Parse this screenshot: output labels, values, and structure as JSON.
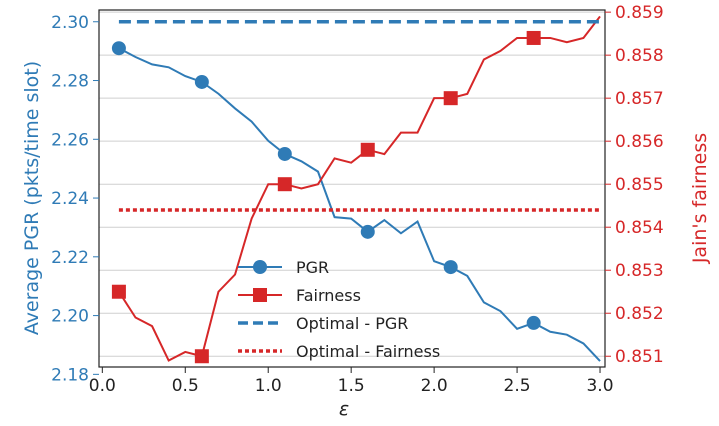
{
  "chart_data": {
    "type": "line",
    "xlabel": "ε",
    "ylabel_left": "Average PGR (pkts/time slot)",
    "ylabel_right": "Jain's fairness",
    "xlim": [
      -0.02,
      3.03
    ],
    "ylim_left": [
      2.1825,
      2.304
    ],
    "ylim_right": [
      0.85075,
      0.85905
    ],
    "x_ticks": [
      "0.0",
      "0.5",
      "1.0",
      "1.5",
      "2.0",
      "2.5",
      "3.0"
    ],
    "y_left_ticks": [
      "2.18",
      "2.20",
      "2.22",
      "2.24",
      "2.26",
      "2.28",
      "2.30"
    ],
    "y_right_ticks": [
      "0.851",
      "0.852",
      "0.853",
      "0.854",
      "0.855",
      "0.856",
      "0.857",
      "0.858",
      "0.859"
    ],
    "grid": "horizontal",
    "legend_position": "center-left",
    "colors": {
      "pgr": "#2f7bb6",
      "fairness": "#d62728",
      "left_axis": "#2f7bb6",
      "right_axis": "#d62728"
    },
    "series": [
      {
        "name": "PGR",
        "axis": "left",
        "style": "line-circle-markers",
        "x": [
          0.1,
          0.2,
          0.3,
          0.4,
          0.5,
          0.6,
          0.7,
          0.8,
          0.9,
          1.0,
          1.1,
          1.2,
          1.3,
          1.4,
          1.5,
          1.6,
          1.7,
          1.8,
          1.9,
          2.0,
          2.1,
          2.2,
          2.3,
          2.4,
          2.5,
          2.6,
          2.7,
          2.8,
          2.9,
          3.0
        ],
        "y": [
          2.291,
          2.288,
          2.2855,
          2.2845,
          2.2815,
          2.2795,
          2.2755,
          2.2705,
          2.266,
          2.2595,
          2.255,
          2.2525,
          2.249,
          2.2335,
          2.233,
          2.2285,
          2.2325,
          2.228,
          2.232,
          2.2185,
          2.2165,
          2.2135,
          2.2045,
          2.2015,
          2.1955,
          2.1975,
          2.1945,
          2.1935,
          2.1905,
          2.1845
        ],
        "marker_x": [
          0.1,
          0.6,
          1.1,
          1.6,
          2.1,
          2.6
        ],
        "marker_y": [
          2.291,
          2.2795,
          2.255,
          2.2285,
          2.2165,
          2.1975
        ]
      },
      {
        "name": "Fairness",
        "axis": "right",
        "style": "line-square-markers",
        "x": [
          0.1,
          0.2,
          0.3,
          0.4,
          0.5,
          0.6,
          0.7,
          0.8,
          0.9,
          1.0,
          1.1,
          1.2,
          1.3,
          1.4,
          1.5,
          1.6,
          1.7,
          1.8,
          1.9,
          2.0,
          2.1,
          2.2,
          2.3,
          2.4,
          2.5,
          2.6,
          2.7,
          2.8,
          2.9,
          3.0
        ],
        "y": [
          0.8525,
          0.8519,
          0.8517,
          0.8509,
          0.8511,
          0.851,
          0.8525,
          0.8529,
          0.8542,
          0.855,
          0.855,
          0.8549,
          0.855,
          0.8556,
          0.8555,
          0.8558,
          0.8557,
          0.8562,
          0.8562,
          0.857,
          0.857,
          0.8571,
          0.8579,
          0.8581,
          0.8584,
          0.8584,
          0.8584,
          0.8583,
          0.8584,
          0.8589
        ],
        "marker_x": [
          0.1,
          0.6,
          1.1,
          1.6,
          2.1,
          2.6
        ],
        "marker_y": [
          0.8525,
          0.851,
          0.855,
          0.8558,
          0.857,
          0.8584
        ]
      },
      {
        "name": "Optimal - PGR",
        "axis": "left",
        "style": "dashed",
        "x": [
          0.1,
          3.0
        ],
        "y": [
          2.3,
          2.3
        ]
      },
      {
        "name": "Optimal - Fairness",
        "axis": "right",
        "style": "dotted",
        "x": [
          0.1,
          3.0
        ],
        "y": [
          0.8544,
          0.8544
        ]
      }
    ]
  }
}
